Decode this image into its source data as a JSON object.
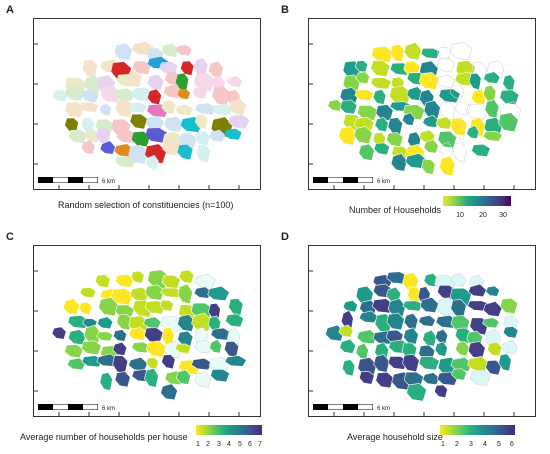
{
  "panels": [
    {
      "letter": "A",
      "caption": "Random selection of constituencies (n=100)",
      "scale_label": "6 km"
    },
    {
      "letter": "B",
      "caption": "Number of Households",
      "scale_label": "6 km",
      "legend_ticks": [
        "10",
        "20",
        "30"
      ],
      "legend_colors": [
        "#e6e635",
        "#a9dc3a",
        "#5cc163",
        "#21a585",
        "#248a8d",
        "#2f6c8e",
        "#3b4f8a",
        "#472f7d",
        "#440154"
      ]
    },
    {
      "letter": "C",
      "caption": "Average number of households per house",
      "scale_label": "6 km",
      "legend_ticks": [
        "1",
        "2",
        "3",
        "4",
        "5",
        "6",
        "7"
      ],
      "legend_colors": [
        "#fde725",
        "#b5de2b",
        "#6ece58",
        "#35b779",
        "#1f9e89",
        "#26828e",
        "#31688e",
        "#3e4989",
        "#482878"
      ]
    },
    {
      "letter": "D",
      "caption": "Average household size",
      "scale_label": "6 km",
      "legend_ticks": [
        "1",
        "2",
        "3",
        "4",
        "5",
        "6"
      ],
      "legend_colors": [
        "#fde725",
        "#b5de2b",
        "#6ece58",
        "#35b779",
        "#1f9e89",
        "#26828e",
        "#31688e",
        "#3e4989",
        "#482878"
      ]
    }
  ],
  "map_palettes": {
    "A": [
      "#f7c6c6",
      "#d7eccc",
      "#cfe3f5",
      "#f5e3c9",
      "#e6d3f2",
      "#f7d7ea",
      "#d5f0ef",
      "#ece9c7"
    ],
    "A_accent": [
      "#2ca02c",
      "#e377c2",
      "#1fa2d8",
      "#e08a1e",
      "#d62728",
      "#7f7f00",
      "#5b5bd6",
      "#17becf"
    ],
    "viridis": [
      "#fde725",
      "#c2df23",
      "#86d549",
      "#52c569",
      "#2ab07f",
      "#1e9b8a",
      "#25858e",
      "#2d708e",
      "#38588c",
      "#433e85",
      "#482173"
    ]
  }
}
